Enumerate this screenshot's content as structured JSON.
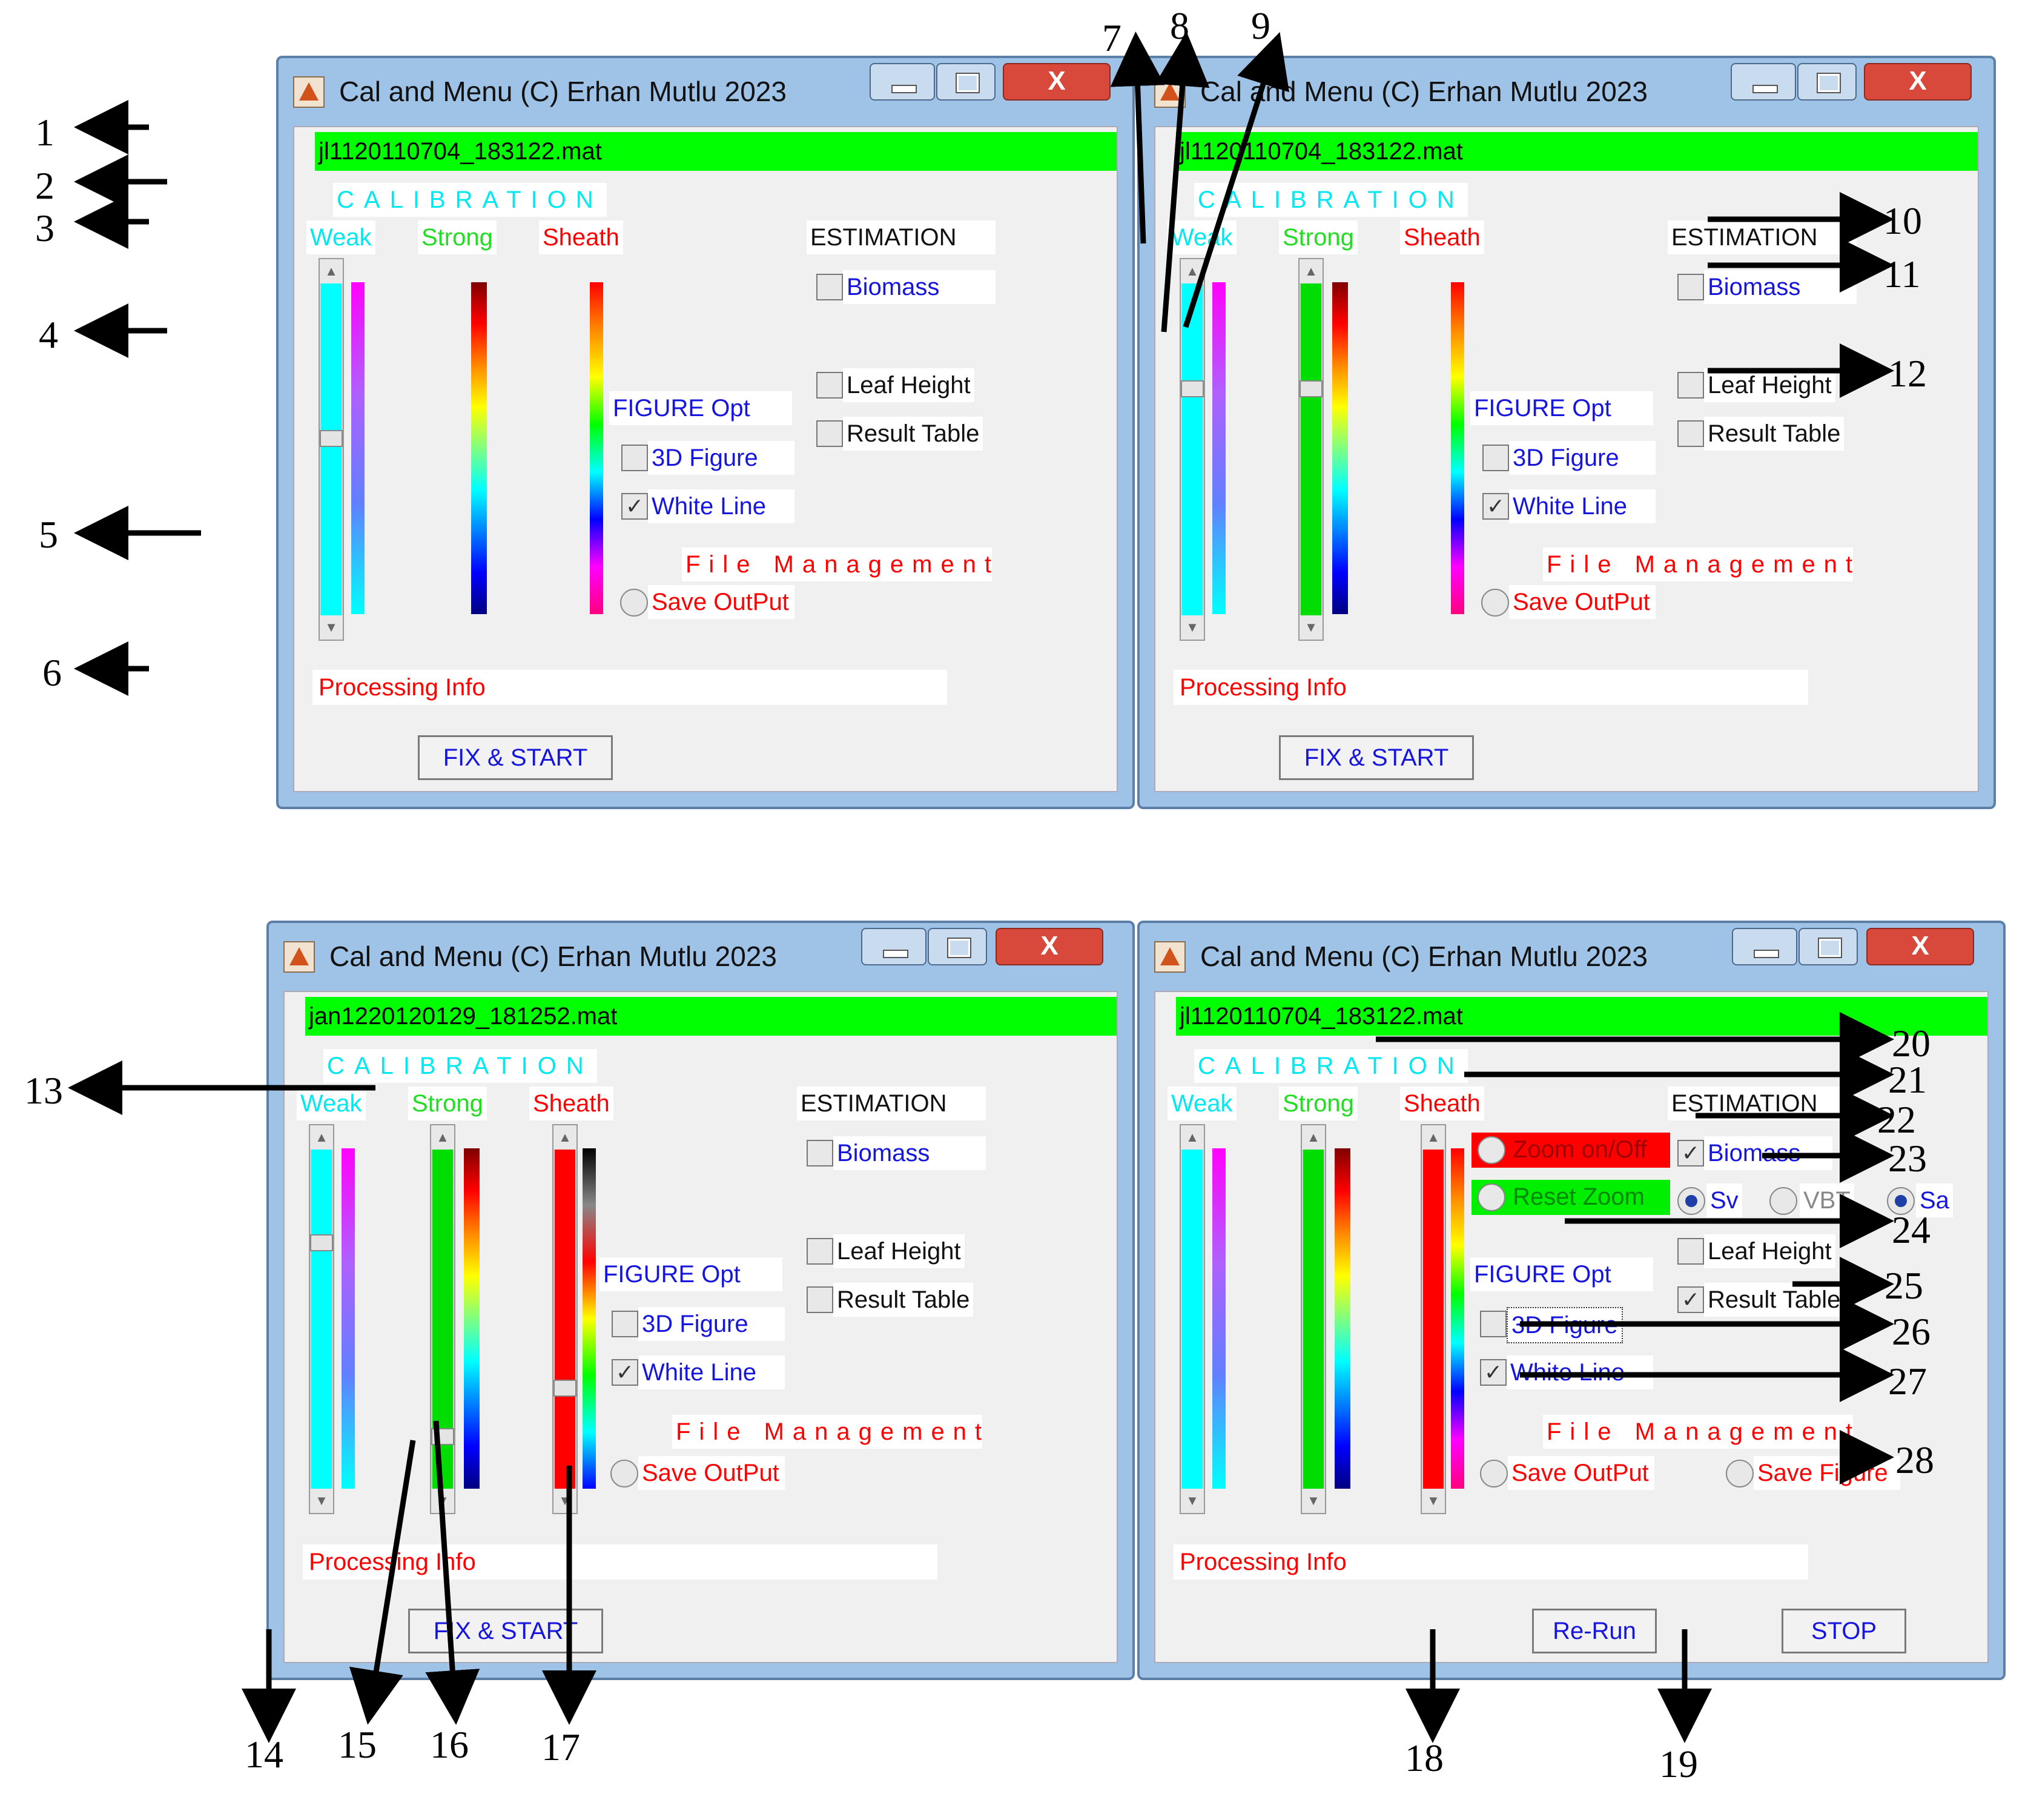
{
  "window_title": "Cal and Menu (C) Erhan Mutlu 2023",
  "close_glyph": "X",
  "panels": [
    {
      "filename": "jl1120110704_183122.mat"
    },
    {
      "filename": "jl1120110704_183122.mat"
    },
    {
      "filename": "jan1220120129_181252.mat"
    },
    {
      "filename": "jl1120110704_183122.mat"
    }
  ],
  "labels": {
    "calibration": "CALIBRATION",
    "weak": "Weak",
    "strong": "Strong",
    "sheath": "Sheath",
    "estimation": "ESTIMATION",
    "biomass": "Biomass",
    "leaf_height": "Leaf Height",
    "result_table": "Result Table",
    "figure_opt": "FIGURE Opt",
    "figure_3d": "3D Figure",
    "white_line": "White Line",
    "file_management": "File Management",
    "save_output": "Save OutPut",
    "save_figure": "Save Figure",
    "processing_info": "Processing Info",
    "fix_start": "FIX & START",
    "re_run": "Re-Run",
    "stop": "STOP",
    "zoom_onoff": "Zoom on/Off",
    "reset_zoom": "Reset Zoom",
    "sv": "Sv",
    "vbt": "VBT",
    "sa": "Sa"
  },
  "checks": {
    "checked_glyph": "✓",
    "panel1": {
      "biomass": false,
      "leaf_height": false,
      "result_table": false,
      "figure_3d": false,
      "white_line": true
    },
    "panel4": {
      "biomass": true,
      "result_table": true,
      "figure_3d": false,
      "white_line": true,
      "selected_radio": "Sa"
    }
  },
  "callouts": [
    "1",
    "2",
    "3",
    "4",
    "5",
    "6",
    "7",
    "8",
    "9",
    "10",
    "11",
    "12",
    "13",
    "14",
    "15",
    "16",
    "17",
    "18",
    "19",
    "20",
    "21",
    "22",
    "23",
    "24",
    "25",
    "26",
    "27",
    "28"
  ],
  "colors": {
    "file_bar": "#00ff00",
    "calibration_text": "#00e8f0",
    "weak": "#00ffff",
    "strong": "#00dd00",
    "sheath": "#ff0000",
    "window_frame": "#9ec3e6"
  }
}
